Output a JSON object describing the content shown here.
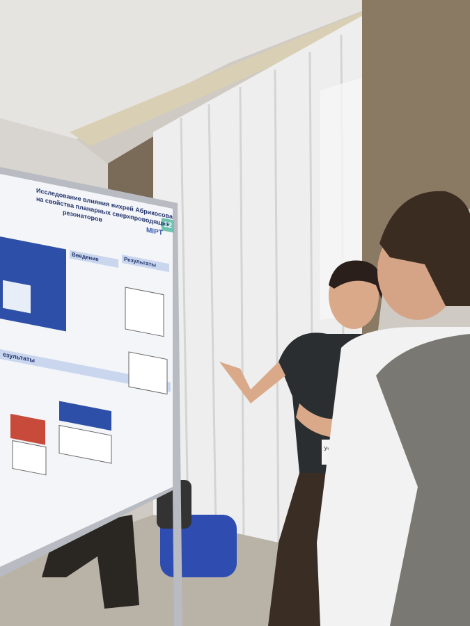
{
  "poster": {
    "title_lines": [
      "Исследование влияния вихрей Абрикосова",
      "на свойства планарных сверхпроводящих",
      "резонаторов"
    ],
    "number": "12",
    "logo": "MIPT",
    "sections": [
      "Введение",
      "Результаты",
      "езультаты"
    ]
  },
  "badge": "Участник"
}
